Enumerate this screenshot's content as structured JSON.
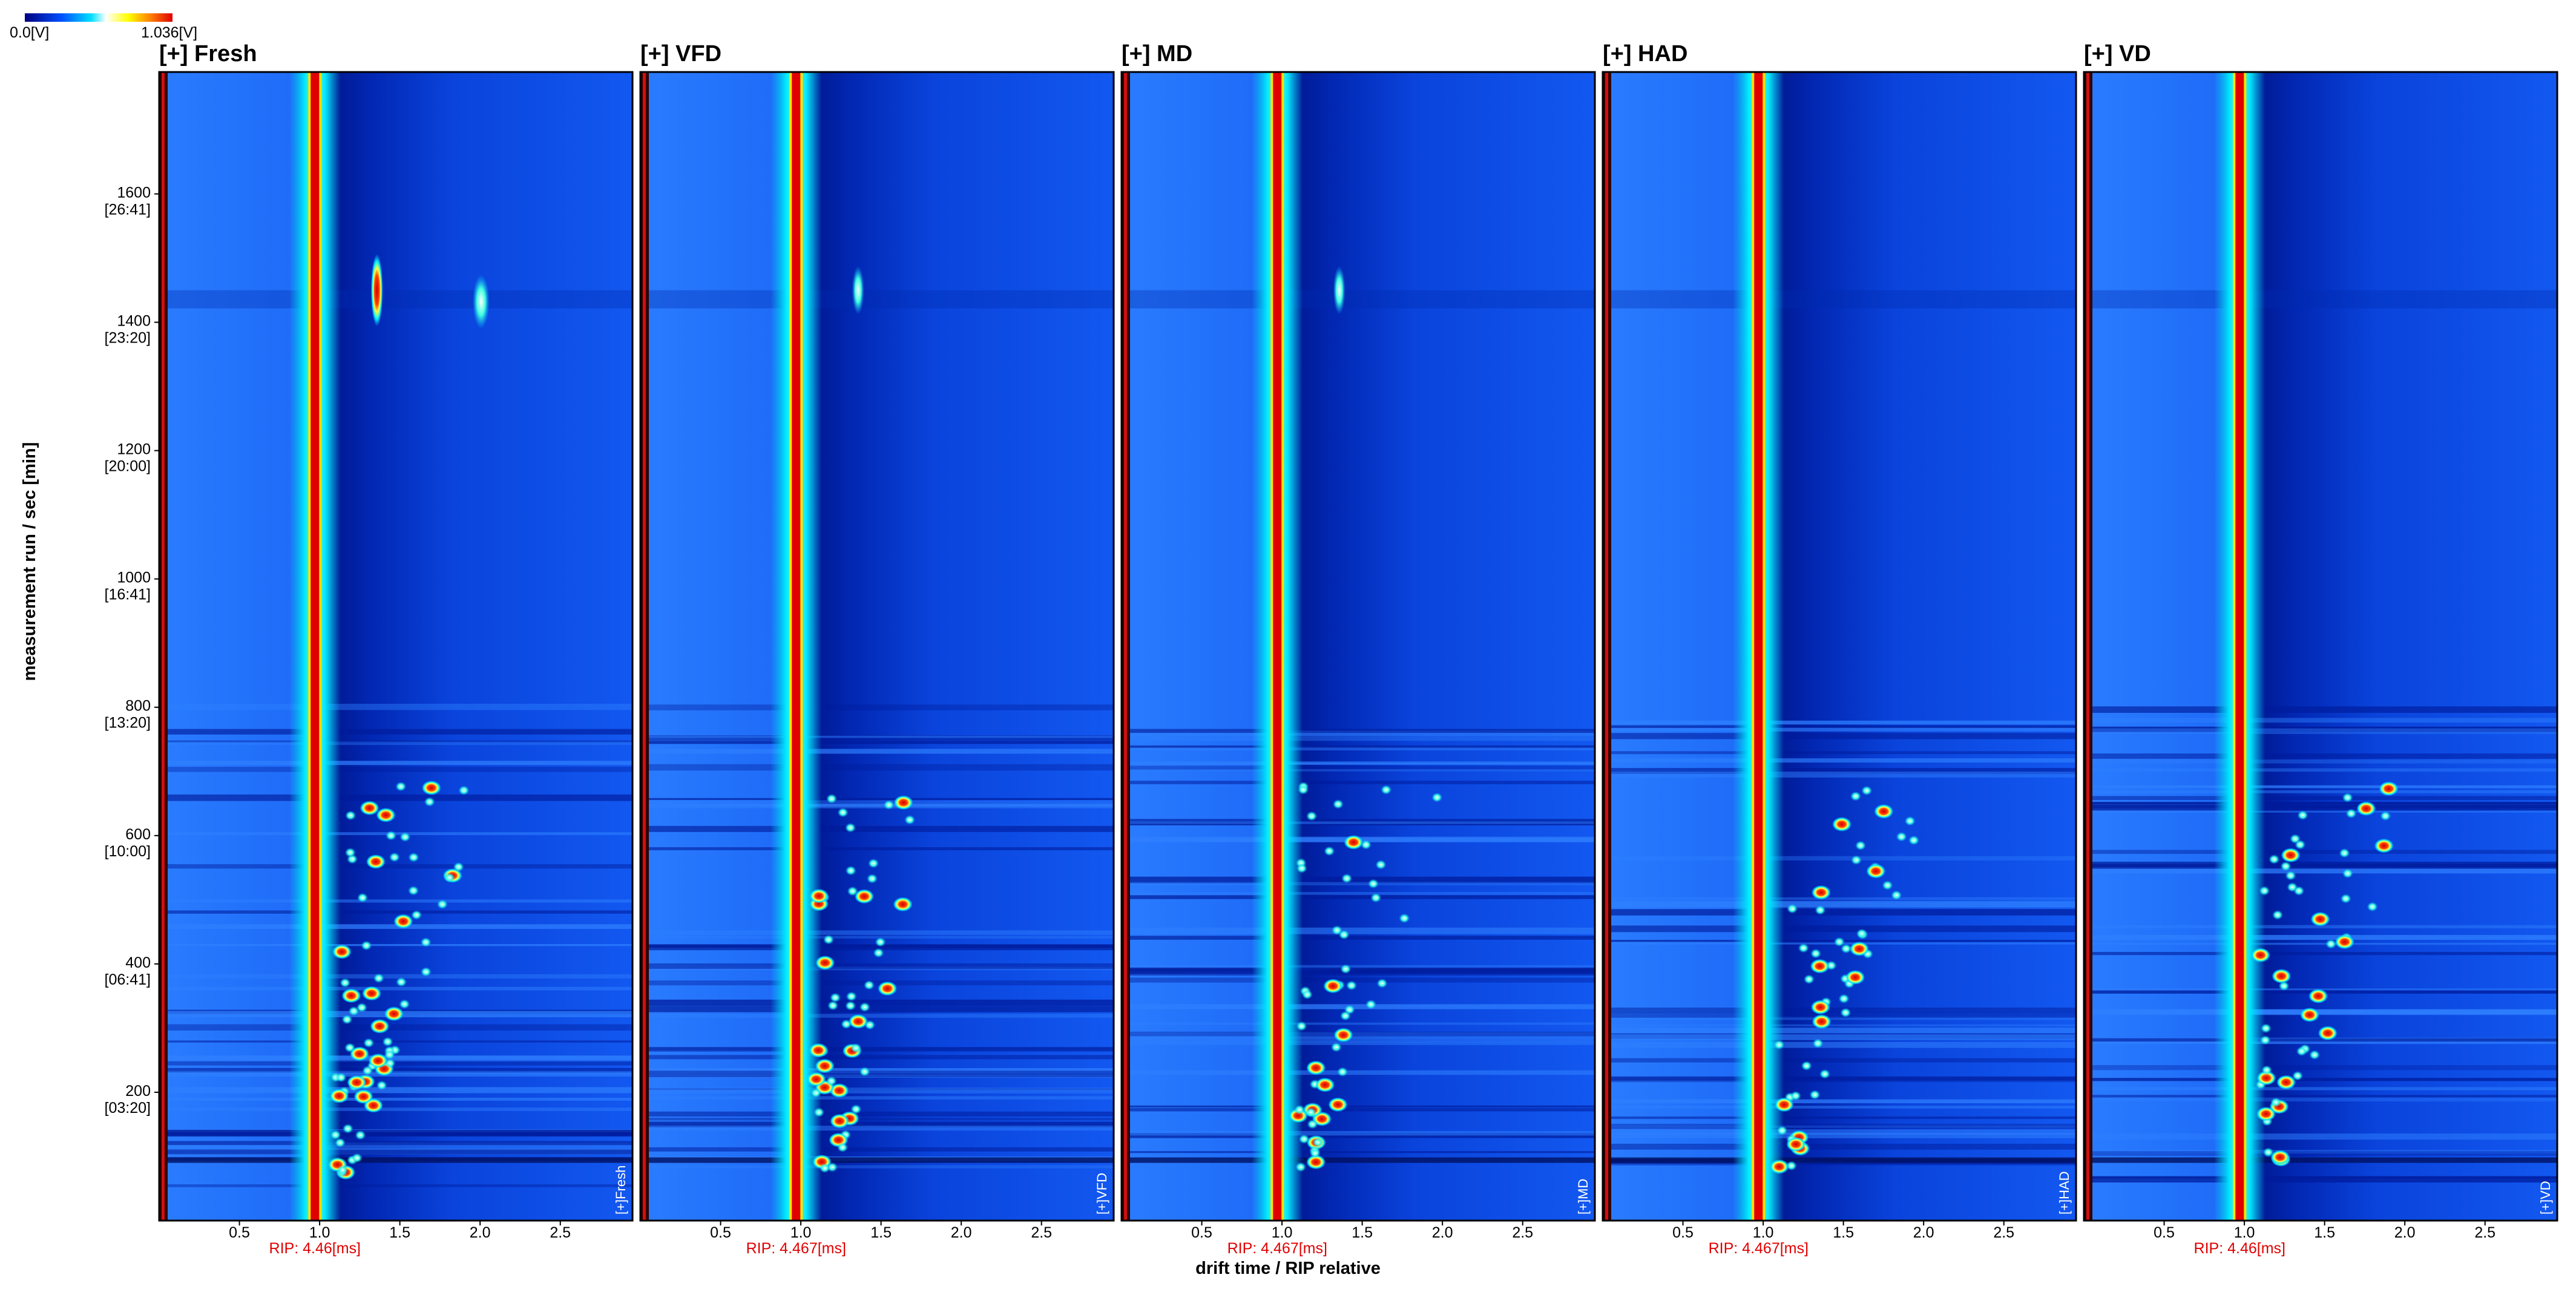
{
  "colorbar": {
    "min_label": "0.0[V]",
    "max_label": "1.036[V]"
  },
  "x_axis_label": "drift time / RIP relative",
  "chart_data": [
    {
      "type": "heatmap",
      "title": "[+] Fresh",
      "side_label": "[+]Fresh",
      "rip_label": "RIP: 4.46[ms]",
      "xlim": [
        0,
        2.95
      ],
      "xticks": [
        0.5,
        {
          "value": 1,
          "label": "1.0"
        },
        1.5,
        {
          "value": 2,
          "label": "2.0"
        },
        2.5
      ],
      "ylabel": "measurement run / sec [min]",
      "ylim": [
        0,
        1790
      ],
      "yticks": [
        {
          "value": 200,
          "label": "200",
          "sub_label": "[03:20]"
        },
        {
          "value": 400,
          "label": "400",
          "sub_label": "[06:41]"
        },
        {
          "value": 600,
          "label": "600",
          "sub_label": "[10:00]"
        },
        {
          "value": 800,
          "label": "800",
          "sub_label": "[13:20]"
        },
        {
          "value": 1000,
          "label": "1000",
          "sub_label": "[16:41]"
        },
        {
          "value": 1200,
          "label": "1200",
          "sub_label": "[20:00]"
        },
        {
          "value": 1400,
          "label": "1400",
          "sub_label": "[23:20]"
        },
        {
          "value": 1600,
          "label": "1600",
          "sub_label": "[26:41]"
        }
      ]
    },
    {
      "type": "heatmap",
      "title": "[+] VFD",
      "side_label": "[+]VFD",
      "rip_label": "RIP: 4.467[ms]",
      "xlim": [
        0,
        2.95
      ],
      "xticks": [
        0.5,
        {
          "value": 1,
          "label": "1.0"
        },
        1.5,
        {
          "value": 2,
          "label": "2.0"
        },
        2.5
      ]
    },
    {
      "type": "heatmap",
      "title": "[+] MD",
      "side_label": "[+]MD",
      "rip_label": "RIP: 4.467[ms]",
      "xlim": [
        0,
        2.95
      ],
      "xticks": [
        0.5,
        {
          "value": 1,
          "label": "1.0"
        },
        1.5,
        {
          "value": 2,
          "label": "2.0"
        },
        2.5
      ]
    },
    {
      "type": "heatmap",
      "title": "[+] HAD",
      "side_label": "[+]HAD",
      "rip_label": "RIP: 4.467[ms]",
      "xlim": [
        0,
        2.95
      ],
      "xticks": [
        0.5,
        {
          "value": 1,
          "label": "1.0"
        },
        1.5,
        {
          "value": 2,
          "label": "2.0"
        },
        2.5
      ]
    },
    {
      "type": "heatmap",
      "title": "[+] VD",
      "side_label": "[+]VD",
      "rip_label": "RIP: 4.46[ms]",
      "xlim": [
        0,
        2.95
      ],
      "xticks": [
        0.5,
        {
          "value": 1,
          "label": "1.0"
        },
        1.5,
        {
          "value": 2,
          "label": "2.0"
        },
        2.5
      ]
    }
  ]
}
